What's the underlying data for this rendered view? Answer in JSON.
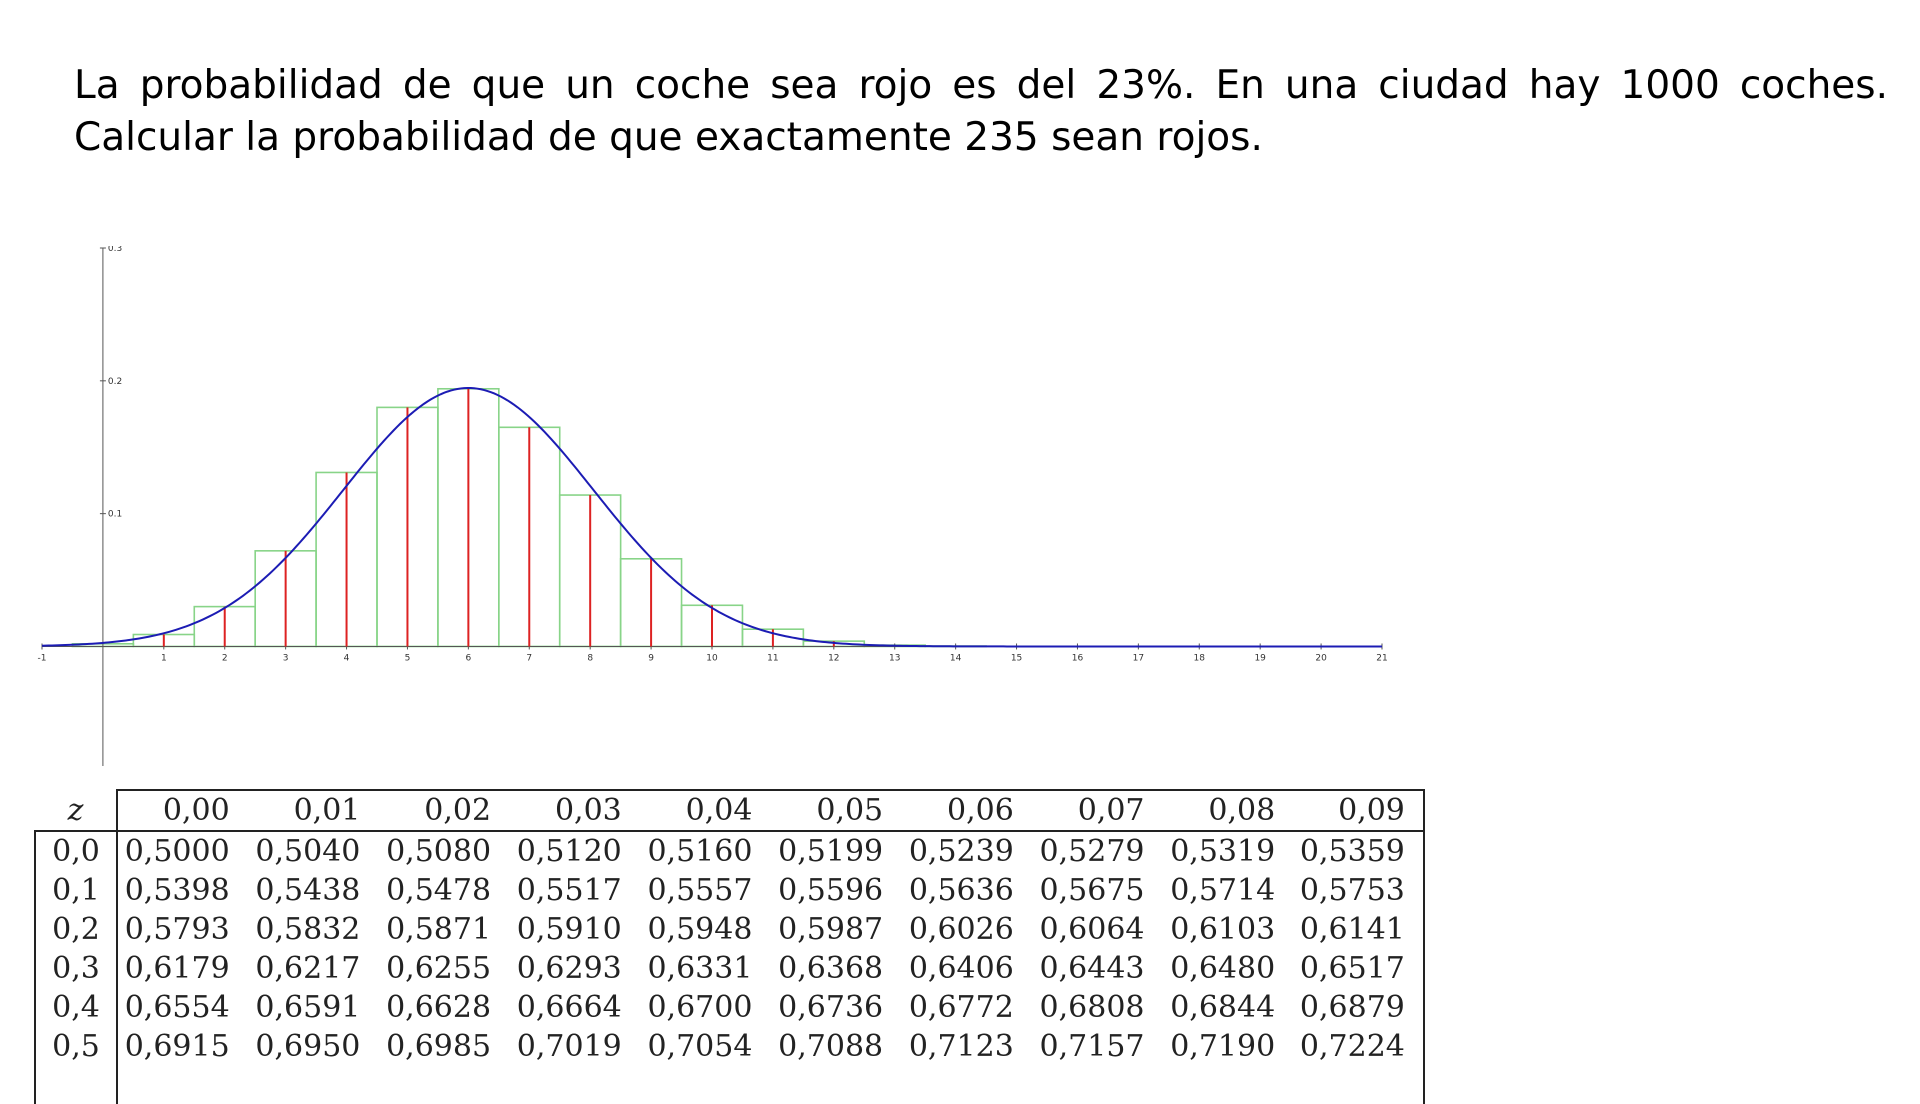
{
  "problem": {
    "text": "La probabilidad de que un coche sea rojo es del 23%. En una ciudad hay 1000 coches. Calcular la probabilidad de que exactamente 235 sean rojos."
  },
  "chart_data": {
    "type": "bar",
    "description_type": "binomial histogram with normal approximation curve",
    "x_ticks": [
      "-1",
      "1",
      "2",
      "3",
      "4",
      "5",
      "6",
      "7",
      "8",
      "9",
      "10",
      "11",
      "12",
      "13",
      "14",
      "15",
      "16",
      "17",
      "18",
      "19",
      "20",
      "21"
    ],
    "y_ticks": [
      "0.3",
      "0.2",
      "0.1"
    ],
    "xlim": [
      -1,
      21
    ],
    "ylim": [
      -0.09,
      0.3
    ],
    "k": [
      0,
      1,
      2,
      3,
      4,
      5,
      6,
      7,
      8,
      9,
      10,
      11,
      12,
      13,
      14
    ],
    "values": [
      0.002,
      0.009,
      0.03,
      0.072,
      0.131,
      0.18,
      0.194,
      0.165,
      0.114,
      0.066,
      0.031,
      0.013,
      0.004,
      0.001,
      0.0003
    ],
    "curve": {
      "mu": 6,
      "sigma": 2.05
    },
    "colors": {
      "bars": "#88d488",
      "stems": "#dd2222",
      "curve": "#1c1cb4",
      "axis": "#555555"
    }
  },
  "ztable": {
    "z_label": "z",
    "columns": [
      "0,00",
      "0,01",
      "0,02",
      "0,03",
      "0,04",
      "0,05",
      "0,06",
      "0,07",
      "0,08",
      "0,09"
    ],
    "rows": [
      {
        "z": "0,0",
        "values": [
          "0,5000",
          "0,5040",
          "0,5080",
          "0,5120",
          "0,5160",
          "0,5199",
          "0,5239",
          "0,5279",
          "0,5319",
          "0,5359"
        ]
      },
      {
        "z": "0,1",
        "values": [
          "0,5398",
          "0,5438",
          "0,5478",
          "0,5517",
          "0,5557",
          "0,5596",
          "0,5636",
          "0,5675",
          "0,5714",
          "0,5753"
        ]
      },
      {
        "z": "0,2",
        "values": [
          "0,5793",
          "0,5832",
          "0,5871",
          "0,5910",
          "0,5948",
          "0,5987",
          "0,6026",
          "0,6064",
          "0,6103",
          "0,6141"
        ]
      },
      {
        "z": "0,3",
        "values": [
          "0,6179",
          "0,6217",
          "0,6255",
          "0,6293",
          "0,6331",
          "0,6368",
          "0,6406",
          "0,6443",
          "0,6480",
          "0,6517"
        ]
      },
      {
        "z": "0,4",
        "values": [
          "0,6554",
          "0,6591",
          "0,6628",
          "0,6664",
          "0,6700",
          "0,6736",
          "0,6772",
          "0,6808",
          "0,6844",
          "0,6879"
        ]
      },
      {
        "z": "0,5",
        "values": [
          "0,6915",
          "0,6950",
          "0,6985",
          "0,7019",
          "0,7054",
          "0,7088",
          "0,7123",
          "0,7157",
          "0,7190",
          "0,7224"
        ]
      }
    ]
  }
}
